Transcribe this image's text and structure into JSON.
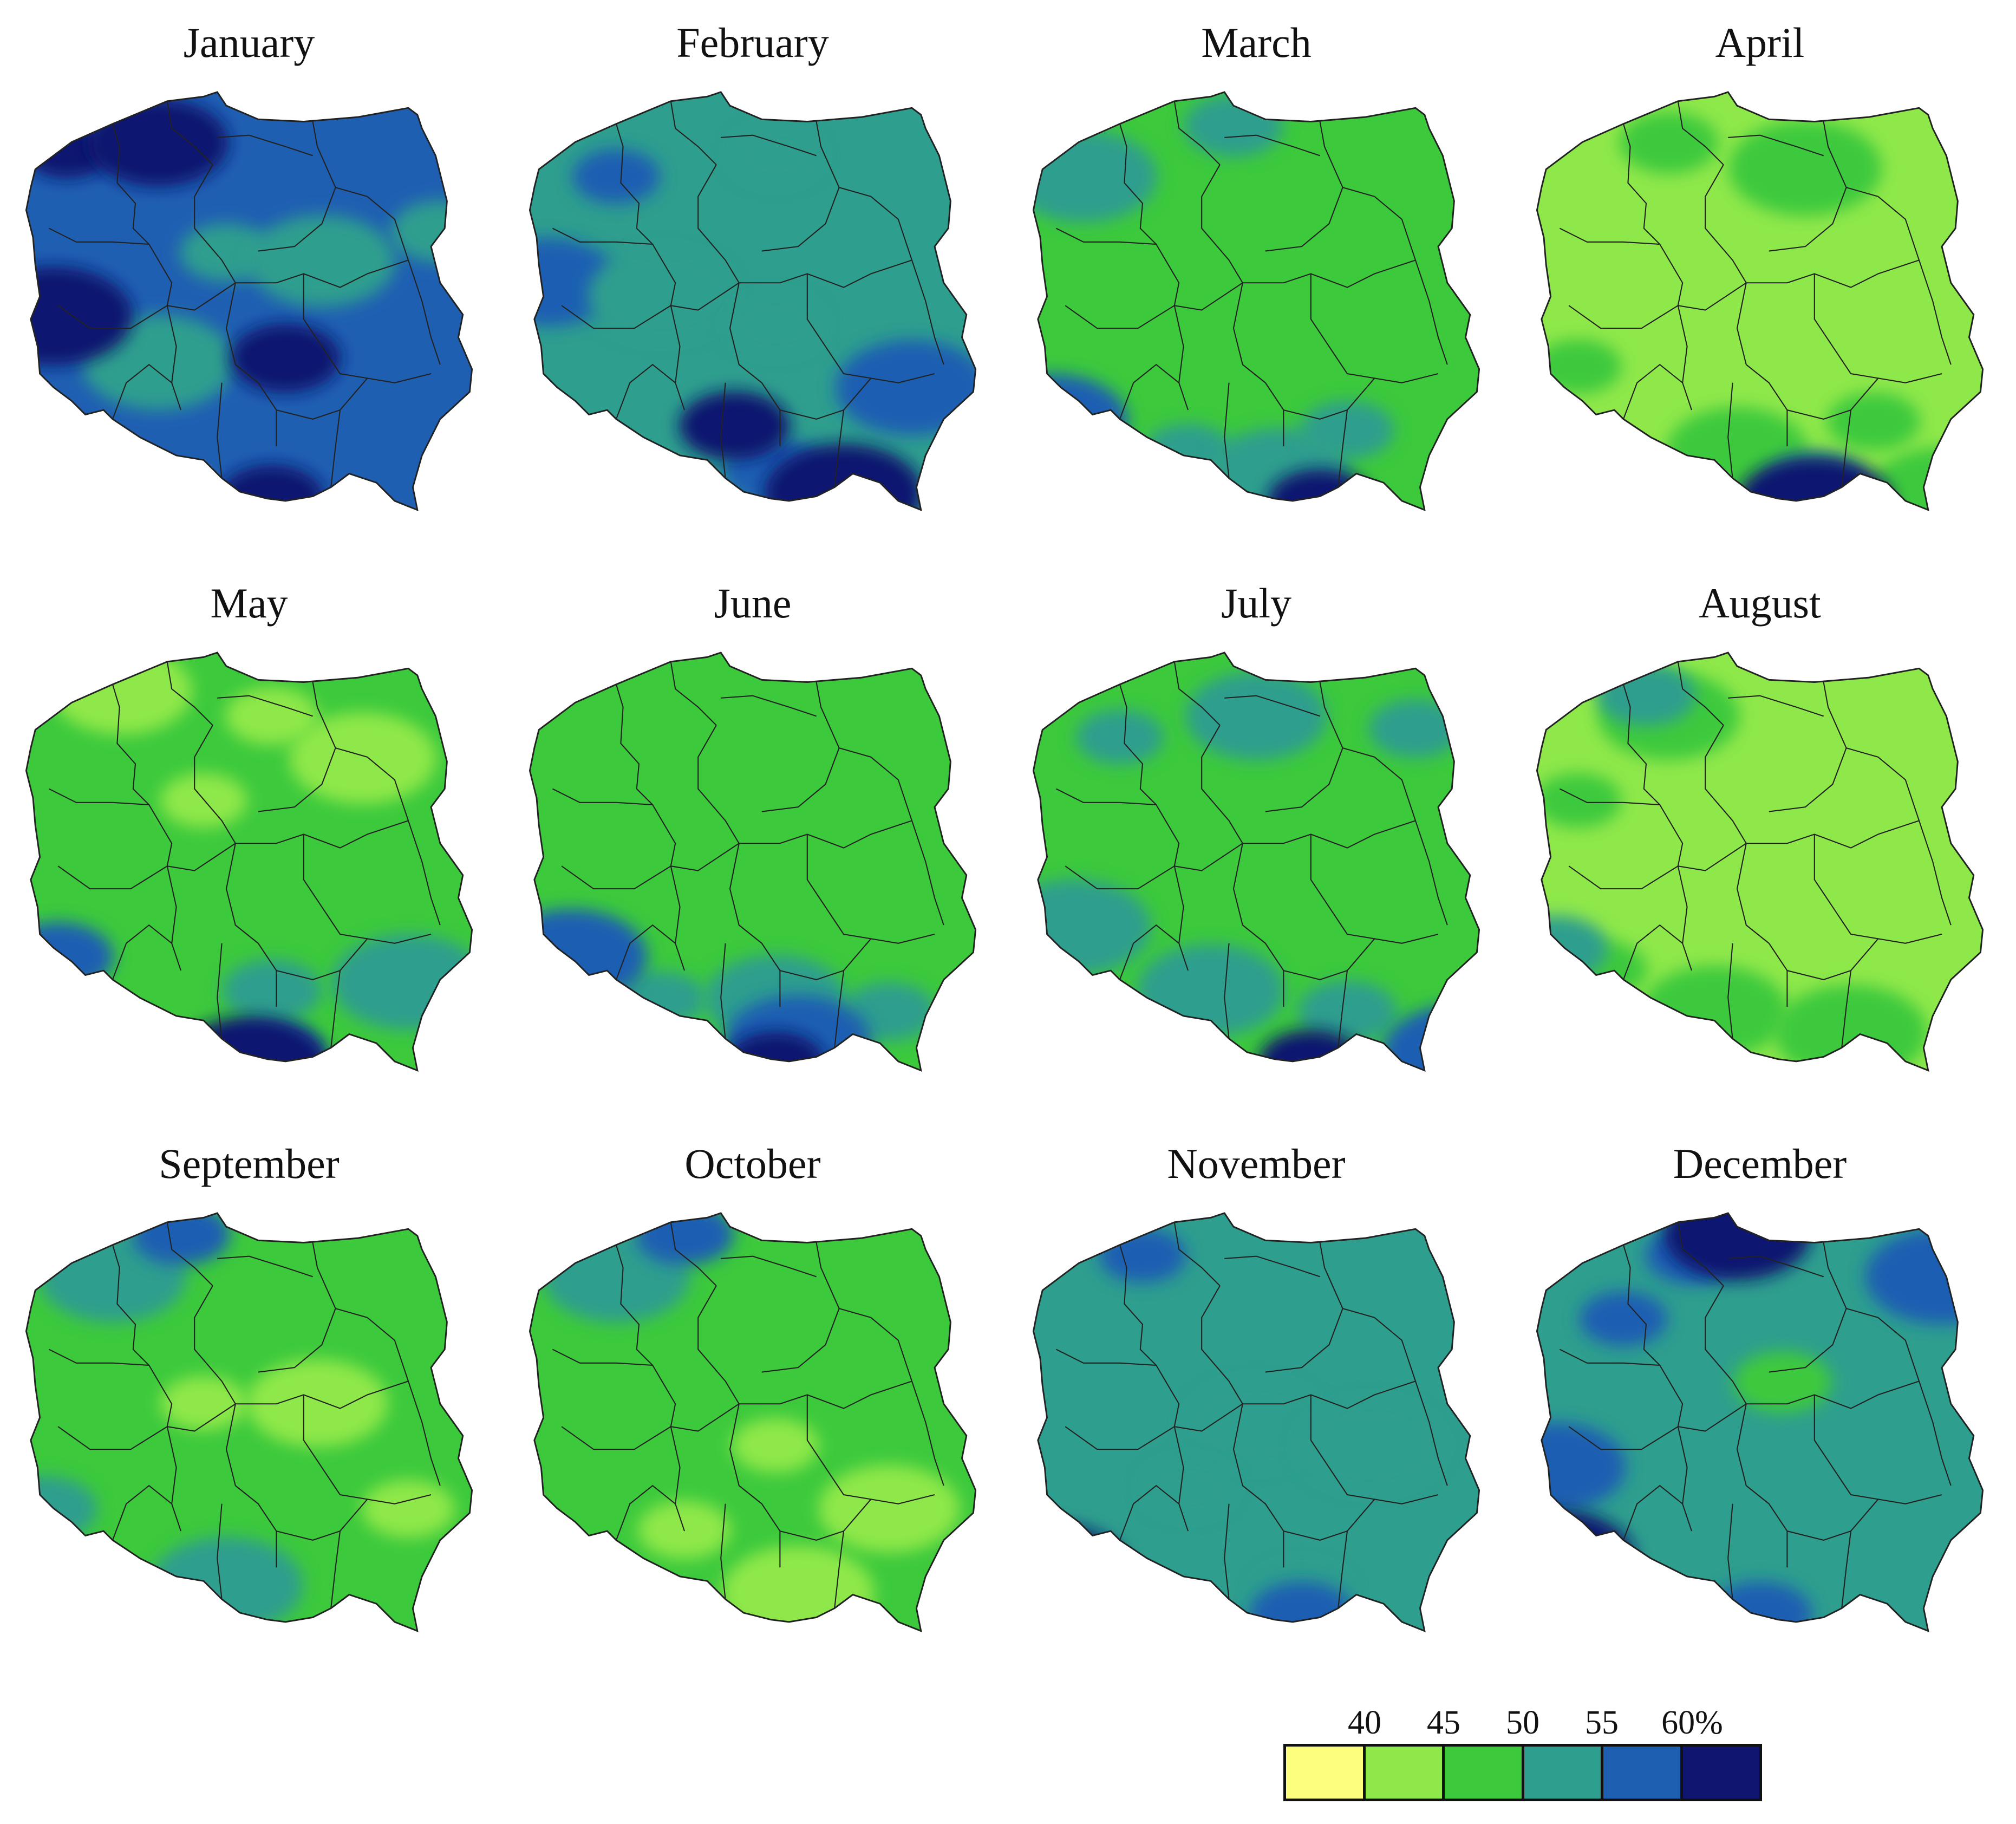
{
  "figure": {
    "panels": [
      {
        "title": "January",
        "base": 4,
        "blobs": [
          [
            0.1,
            0.14,
            5
          ],
          [
            0.3,
            0.12,
            5
          ],
          [
            0.45,
            0.38,
            3
          ],
          [
            0.66,
            0.4,
            3
          ],
          [
            0.92,
            0.33,
            3
          ],
          [
            0.3,
            0.64,
            3
          ],
          [
            0.55,
            0.96,
            5
          ],
          [
            0.07,
            0.53,
            5
          ],
          [
            0.58,
            0.63,
            5
          ]
        ]
      },
      {
        "title": "February",
        "base": 3,
        "blobs": [
          [
            0.2,
            0.2,
            4
          ],
          [
            0.05,
            0.45,
            4
          ],
          [
            0.55,
            0.15,
            3
          ],
          [
            0.3,
            0.48,
            3
          ],
          [
            0.55,
            0.55,
            3
          ],
          [
            0.85,
            0.7,
            4
          ],
          [
            0.55,
            0.9,
            4
          ],
          [
            0.7,
            0.95,
            5
          ],
          [
            0.46,
            0.79,
            5
          ]
        ]
      },
      {
        "title": "March",
        "base": 2,
        "blobs": [
          [
            0.35,
            0.85,
            3
          ],
          [
            0.55,
            0.9,
            3
          ],
          [
            0.7,
            0.8,
            3
          ],
          [
            0.12,
            0.2,
            3
          ],
          [
            0.45,
            0.08,
            3
          ],
          [
            0.05,
            0.78,
            4
          ],
          [
            0.64,
            0.97,
            5
          ]
        ]
      },
      {
        "title": "April",
        "base": 1,
        "blobs": [
          [
            0.1,
            0.65,
            2
          ],
          [
            0.45,
            0.85,
            2
          ],
          [
            0.75,
            0.78,
            2
          ],
          [
            0.9,
            0.95,
            2
          ],
          [
            0.3,
            0.12,
            2
          ],
          [
            0.6,
            0.18,
            2
          ],
          [
            0.62,
            0.93,
            3
          ],
          [
            0.62,
            0.98,
            5
          ]
        ]
      },
      {
        "title": "May",
        "base": 2,
        "blobs": [
          [
            0.4,
            0.35,
            1
          ],
          [
            0.22,
            0.09,
            1
          ],
          [
            0.55,
            0.15,
            1
          ],
          [
            0.75,
            0.25,
            1
          ],
          [
            0.55,
            0.8,
            3
          ],
          [
            0.85,
            0.78,
            3
          ],
          [
            0.55,
            0.95,
            4
          ],
          [
            0.5,
            0.98,
            5
          ],
          [
            0.08,
            0.72,
            4
          ]
        ]
      },
      {
        "title": "June",
        "base": 2,
        "blobs": [
          [
            0.3,
            0.82,
            3
          ],
          [
            0.55,
            0.82,
            3
          ],
          [
            0.8,
            0.85,
            3
          ],
          [
            0.6,
            0.92,
            4
          ],
          [
            0.55,
            0.97,
            5
          ],
          [
            0.1,
            0.72,
            4
          ]
        ]
      },
      {
        "title": "July",
        "base": 2,
        "blobs": [
          [
            0.2,
            0.2,
            3
          ],
          [
            0.5,
            0.15,
            3
          ],
          [
            0.85,
            0.18,
            3
          ],
          [
            0.4,
            0.8,
            3
          ],
          [
            0.7,
            0.85,
            3
          ],
          [
            0.1,
            0.65,
            3
          ],
          [
            0.62,
            0.97,
            5
          ],
          [
            0.95,
            0.95,
            4
          ]
        ]
      },
      {
        "title": "August",
        "base": 1,
        "blobs": [
          [
            0.1,
            0.35,
            2
          ],
          [
            0.3,
            0.15,
            2
          ],
          [
            0.15,
            0.75,
            2
          ],
          [
            0.4,
            0.85,
            2
          ],
          [
            0.25,
            0.1,
            3
          ],
          [
            0.7,
            0.9,
            2
          ],
          [
            0.05,
            0.7,
            3
          ]
        ]
      },
      {
        "title": "September",
        "base": 2,
        "blobs": [
          [
            0.4,
            0.45,
            1
          ],
          [
            0.65,
            0.45,
            1
          ],
          [
            0.85,
            0.7,
            1
          ],
          [
            0.2,
            0.15,
            3
          ],
          [
            0.35,
            0.05,
            4
          ],
          [
            0.45,
            0.88,
            3
          ],
          [
            0.05,
            0.7,
            3
          ]
        ]
      },
      {
        "title": "October",
        "base": 2,
        "blobs": [
          [
            0.55,
            0.55,
            1
          ],
          [
            0.8,
            0.7,
            1
          ],
          [
            0.35,
            0.75,
            1
          ],
          [
            0.2,
            0.15,
            3
          ],
          [
            0.35,
            0.05,
            4
          ],
          [
            0.6,
            0.9,
            1
          ]
        ]
      },
      {
        "title": "November",
        "base": 3,
        "blobs": [
          [
            0.25,
            0.1,
            4
          ],
          [
            0.5,
            0.5,
            3
          ],
          [
            0.35,
            0.65,
            3
          ],
          [
            0.75,
            0.55,
            3
          ],
          [
            0.6,
            0.9,
            3
          ],
          [
            0.05,
            0.85,
            5
          ],
          [
            0.6,
            0.95,
            4
          ]
        ]
      },
      {
        "title": "December",
        "base": 3,
        "blobs": [
          [
            0.2,
            0.25,
            4
          ],
          [
            0.05,
            0.6,
            4
          ],
          [
            0.35,
            0.1,
            4
          ],
          [
            0.45,
            0.05,
            5
          ],
          [
            0.55,
            0.4,
            2
          ],
          [
            0.9,
            0.15,
            4
          ],
          [
            0.5,
            0.95,
            4
          ],
          [
            0.05,
            0.82,
            5
          ]
        ]
      }
    ]
  },
  "legend": {
    "labels": [
      "40",
      "45",
      "50",
      "55",
      "60%"
    ],
    "colors": [
      "#fdfd7e",
      "#8fe84a",
      "#3cc93c",
      "#2e9e8e",
      "#1f5fb2",
      "#101670"
    ]
  }
}
